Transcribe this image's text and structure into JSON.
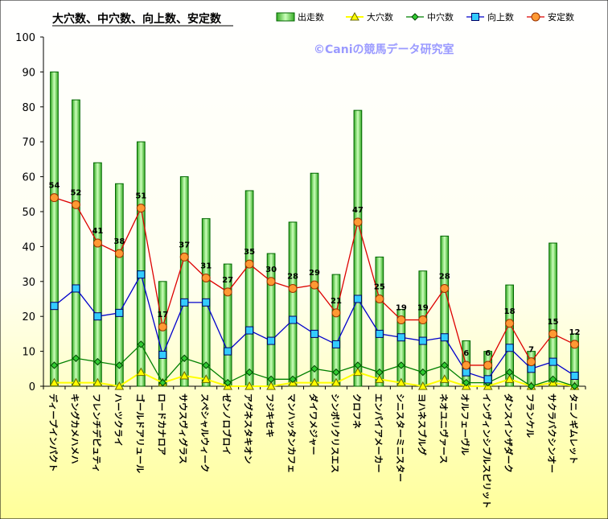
{
  "chart_data": {
    "type": "bar",
    "title": "大穴数、中穴数、向上数、安定数",
    "watermark": "©Caniの競馬データ研究室",
    "ylim": [
      0,
      100
    ],
    "y_ticks": [
      0,
      10,
      20,
      30,
      40,
      50,
      60,
      70,
      80,
      90,
      100
    ],
    "legend_position": "top-right",
    "grid": false,
    "categories": [
      "ディープインパクト",
      "キングカメハメハ",
      "フレンチデピュティ",
      "ハーツクライ",
      "ゴールドアリュール",
      "ロードカナロア",
      "サウスヴィグラス",
      "スペシャルウィーク",
      "ゼンノロブロイ",
      "アグネスタキオン",
      "フジキセキ",
      "マンハッタンカフェ",
      "ダイワメジャー",
      "シンボリクリスエス",
      "クロフネ",
      "エンパイアメーカー",
      "シニスターミニスター",
      "ヨハネスブルグ",
      "ネオユニヴァース",
      "オルフェーヴル",
      "インヴィンシブルスピリット",
      "ダンスインザダーク",
      "フランケル",
      "サクラバクシンオー",
      "タニノギムレット"
    ],
    "series": [
      {
        "name": "出走数",
        "kind": "bar",
        "color": "#66dd44",
        "values": [
          90,
          82,
          64,
          58,
          70,
          30,
          60,
          48,
          35,
          56,
          38,
          47,
          61,
          32,
          79,
          37,
          22,
          33,
          43,
          13,
          10,
          29,
          10,
          41,
          15
        ]
      },
      {
        "name": "大穴数",
        "kind": "line",
        "color": "#ffff00",
        "values": [
          1,
          1,
          1,
          0,
          4,
          1,
          3,
          2,
          0,
          0,
          0,
          1,
          1,
          1,
          4,
          2,
          1,
          0,
          2,
          0,
          0,
          2,
          0,
          1,
          0
        ]
      },
      {
        "name": "中穴数",
        "kind": "line",
        "color": "#008000",
        "values": [
          6,
          8,
          7,
          6,
          12,
          1,
          8,
          6,
          1,
          4,
          2,
          2,
          5,
          4,
          6,
          4,
          6,
          4,
          6,
          1,
          1,
          4,
          0,
          2,
          0
        ]
      },
      {
        "name": "向上数",
        "kind": "line",
        "color": "#0000cc",
        "values": [
          23,
          28,
          20,
          21,
          32,
          9,
          24,
          24,
          10,
          16,
          13,
          19,
          15,
          12,
          25,
          15,
          14,
          13,
          14,
          4,
          2,
          11,
          5,
          7,
          3
        ]
      },
      {
        "name": "安定数",
        "kind": "line",
        "color": "#dd0000",
        "values": [
          54,
          52,
          41,
          38,
          51,
          17,
          37,
          31,
          27,
          35,
          30,
          28,
          29,
          21,
          47,
          25,
          19,
          19,
          28,
          6,
          6,
          18,
          7,
          15,
          12
        ]
      }
    ]
  }
}
